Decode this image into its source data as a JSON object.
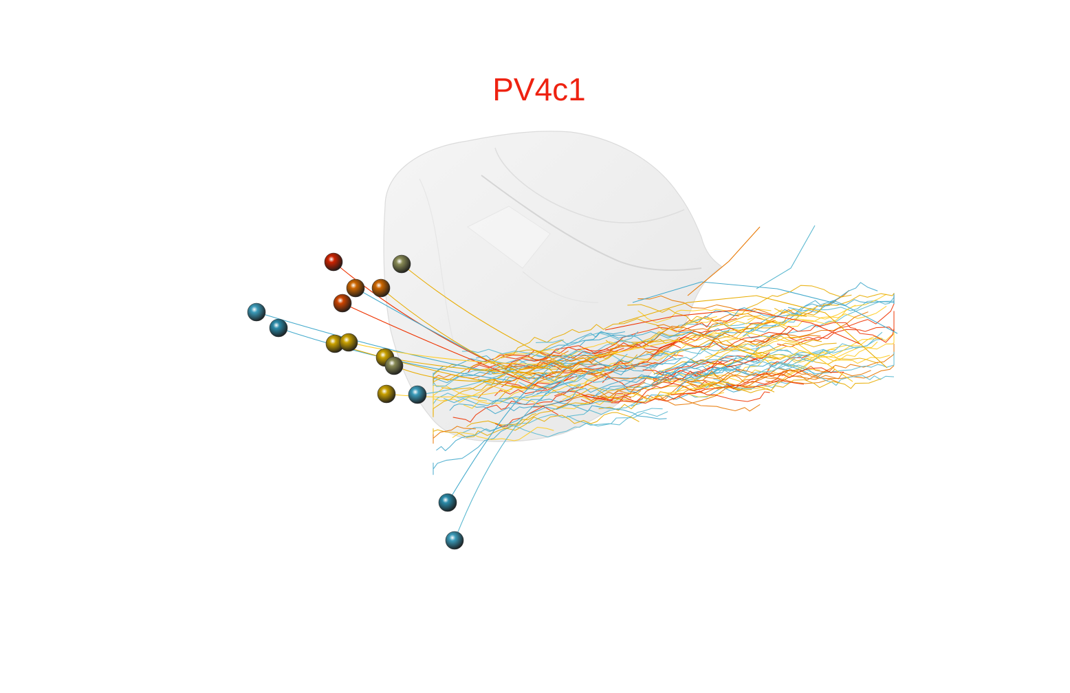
{
  "title": {
    "text": "PV4c1",
    "color": "#ee2211"
  },
  "scene": {
    "background": "#ffffff",
    "mesh_color": "#e9e9e9",
    "soma_colors": [
      "#cc2200",
      "#cc4400",
      "#d08a00",
      "#cc6600",
      "#b8a040",
      "#c8a000",
      "#888a55",
      "#2a8aa8",
      "#3a9ab8"
    ],
    "neurite_colors": [
      "#e8ac00",
      "#ee3300",
      "#44aacc",
      "#ffcc22",
      "#e87700",
      "#5ab8d0"
    ]
  }
}
